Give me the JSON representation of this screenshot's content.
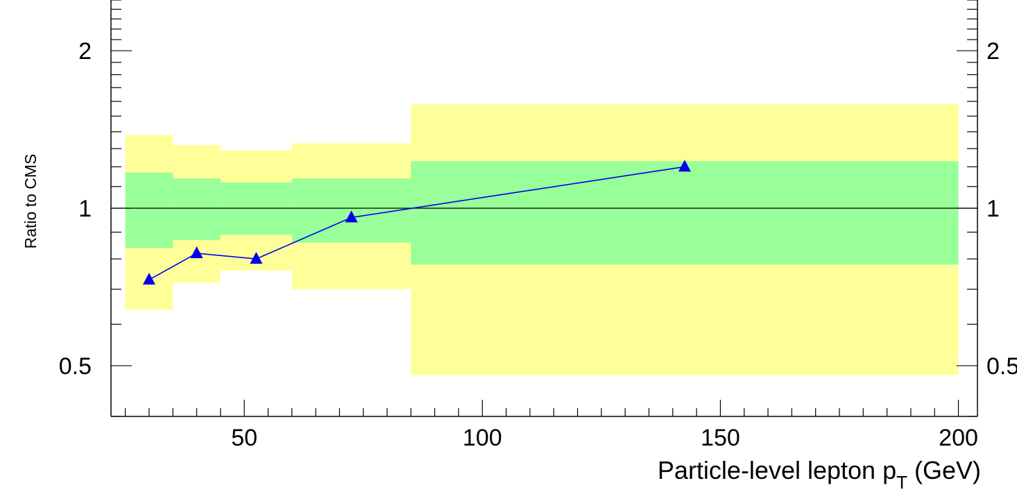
{
  "chart_data": {
    "type": "line",
    "title": "",
    "xlabel": "Particle-level lepton p",
    "xlabel_subscript": "T",
    "xlabel_unit": "(GeV)",
    "ylabel": "Ratio to CMS",
    "xlim": [
      22,
      204
    ],
    "ylim": [
      0.4,
      2.5
    ],
    "yscale": "log",
    "x_ticks": [
      50,
      100,
      150,
      200
    ],
    "x_tick_labels": [
      "50",
      "100",
      "150",
      "200"
    ],
    "y_ticks": [
      0.5,
      1,
      2
    ],
    "y_tick_labels": [
      "0.5",
      "1",
      "2"
    ],
    "right_y_tick_labels": [
      "0.5",
      "1",
      "2"
    ],
    "reference_line": 1,
    "grid": false,
    "legend": "none",
    "bins": [
      {
        "x_low": 25,
        "x_high": 35,
        "inner_low": 0.84,
        "inner_high": 1.17,
        "outer_low": 0.64,
        "outer_high": 1.38
      },
      {
        "x_low": 35,
        "x_high": 45,
        "inner_low": 0.87,
        "inner_high": 1.14,
        "outer_low": 0.72,
        "outer_high": 1.32
      },
      {
        "x_low": 45,
        "x_high": 60,
        "inner_low": 0.89,
        "inner_high": 1.12,
        "outer_low": 0.76,
        "outer_high": 1.29
      },
      {
        "x_low": 60,
        "x_high": 85,
        "inner_low": 0.86,
        "inner_high": 1.14,
        "outer_low": 0.7,
        "outer_high": 1.33
      },
      {
        "x_low": 85,
        "x_high": 200,
        "inner_low": 0.78,
        "inner_high": 1.23,
        "outer_low": 0.48,
        "outer_high": 1.58
      }
    ],
    "series": [
      {
        "x": [
          30,
          40,
          52.5,
          72.5,
          142.5
        ],
        "values": [
          0.73,
          0.82,
          0.8,
          0.96,
          1.2
        ],
        "color": "#0000ee"
      }
    ],
    "colors": {
      "inner_band": "#99ff99",
      "outer_band": "#ffff99",
      "axis": "#000000"
    }
  }
}
